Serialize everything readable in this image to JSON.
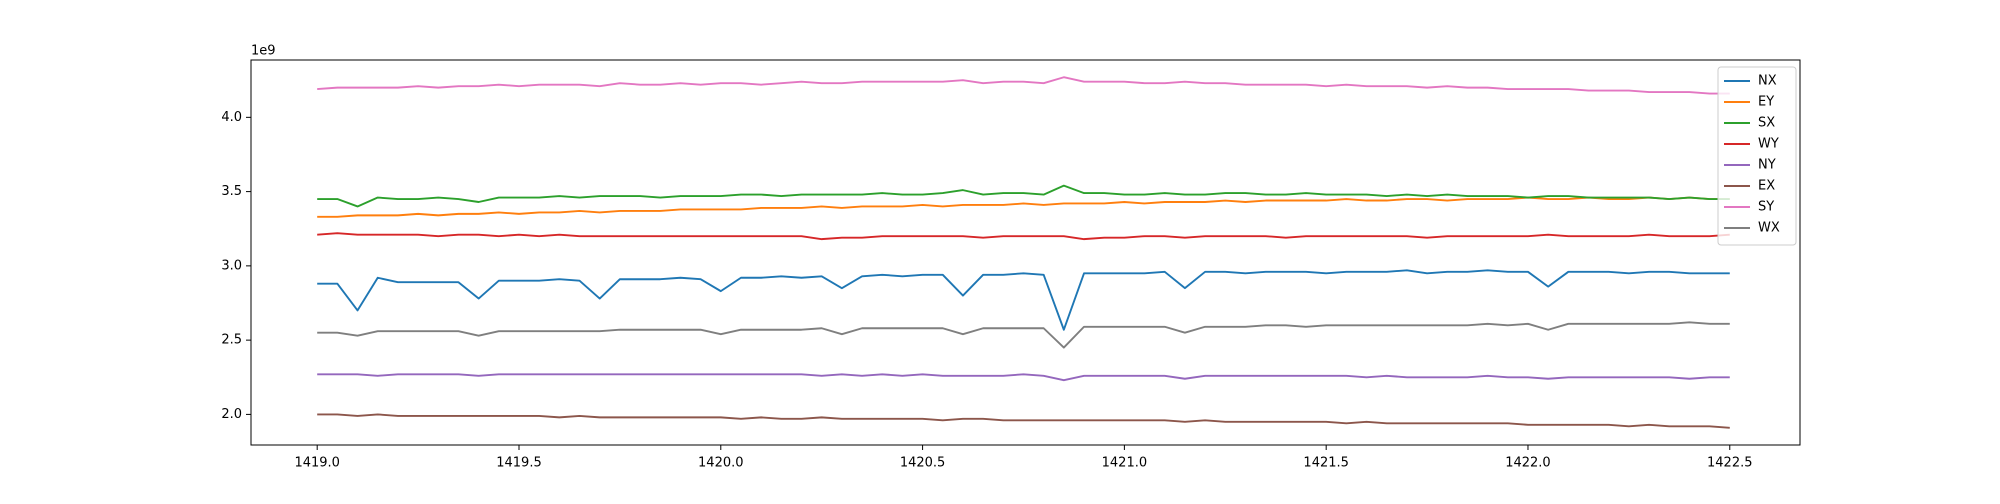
{
  "chart_data": {
    "type": "line",
    "y_offset_label": "1e9",
    "x": [
      1419,
      1419.05,
      1419.1,
      1419.15,
      1419.2,
      1419.25,
      1419.3,
      1419.35,
      1419.4,
      1419.45,
      1419.5,
      1419.55,
      1419.6,
      1419.65,
      1419.7,
      1419.75,
      1419.8,
      1419.85,
      1419.9,
      1419.95,
      1420,
      1420.05,
      1420.1,
      1420.15,
      1420.2,
      1420.25,
      1420.3,
      1420.35,
      1420.4,
      1420.45,
      1420.5,
      1420.55,
      1420.6,
      1420.65,
      1420.7,
      1420.75,
      1420.8,
      1420.85,
      1420.9,
      1420.95,
      1421,
      1421.05,
      1421.1,
      1421.15,
      1421.2,
      1421.25,
      1421.3,
      1421.35,
      1421.4,
      1421.45,
      1421.5,
      1421.55,
      1421.6,
      1421.65,
      1421.7,
      1421.75,
      1421.8,
      1421.85,
      1421.9,
      1421.95,
      1422,
      1422.05,
      1422.1,
      1422.15,
      1422.2,
      1422.25,
      1422.3,
      1422.35,
      1422.4,
      1422.45,
      1422.5
    ],
    "series": [
      {
        "name": "NX",
        "color": "#1f77b4",
        "values": [
          2.88,
          2.88,
          2.7,
          2.92,
          2.89,
          2.89,
          2.89,
          2.89,
          2.78,
          2.9,
          2.9,
          2.9,
          2.91,
          2.9,
          2.78,
          2.91,
          2.91,
          2.91,
          2.92,
          2.91,
          2.83,
          2.92,
          2.92,
          2.93,
          2.92,
          2.93,
          2.85,
          2.93,
          2.94,
          2.93,
          2.94,
          2.94,
          2.8,
          2.94,
          2.94,
          2.95,
          2.94,
          2.57,
          2.95,
          2.95,
          2.95,
          2.95,
          2.96,
          2.85,
          2.96,
          2.96,
          2.95,
          2.96,
          2.96,
          2.96,
          2.95,
          2.96,
          2.96,
          2.96,
          2.97,
          2.95,
          2.96,
          2.96,
          2.97,
          2.96,
          2.96,
          2.86,
          2.96,
          2.96,
          2.96,
          2.95,
          2.96,
          2.96,
          2.95,
          2.95,
          2.95
        ]
      },
      {
        "name": "EY",
        "color": "#ff7f0e",
        "values": [
          3.33,
          3.33,
          3.34,
          3.34,
          3.34,
          3.35,
          3.34,
          3.35,
          3.35,
          3.36,
          3.35,
          3.36,
          3.36,
          3.37,
          3.36,
          3.37,
          3.37,
          3.37,
          3.38,
          3.38,
          3.38,
          3.38,
          3.39,
          3.39,
          3.39,
          3.4,
          3.39,
          3.4,
          3.4,
          3.4,
          3.41,
          3.4,
          3.41,
          3.41,
          3.41,
          3.42,
          3.41,
          3.42,
          3.42,
          3.42,
          3.43,
          3.42,
          3.43,
          3.43,
          3.43,
          3.44,
          3.43,
          3.44,
          3.44,
          3.44,
          3.44,
          3.45,
          3.44,
          3.44,
          3.45,
          3.45,
          3.44,
          3.45,
          3.45,
          3.45,
          3.46,
          3.45,
          3.45,
          3.46,
          3.45,
          3.45,
          3.46,
          3.45,
          3.46,
          3.45,
          3.45
        ]
      },
      {
        "name": "SX",
        "color": "#2ca02c",
        "values": [
          3.45,
          3.45,
          3.4,
          3.46,
          3.45,
          3.45,
          3.46,
          3.45,
          3.43,
          3.46,
          3.46,
          3.46,
          3.47,
          3.46,
          3.47,
          3.47,
          3.47,
          3.46,
          3.47,
          3.47,
          3.47,
          3.48,
          3.48,
          3.47,
          3.48,
          3.48,
          3.48,
          3.48,
          3.49,
          3.48,
          3.48,
          3.49,
          3.51,
          3.48,
          3.49,
          3.49,
          3.48,
          3.54,
          3.49,
          3.49,
          3.48,
          3.48,
          3.49,
          3.48,
          3.48,
          3.49,
          3.49,
          3.48,
          3.48,
          3.49,
          3.48,
          3.48,
          3.48,
          3.47,
          3.48,
          3.47,
          3.48,
          3.47,
          3.47,
          3.47,
          3.46,
          3.47,
          3.47,
          3.46,
          3.46,
          3.46,
          3.46,
          3.45,
          3.46,
          3.45,
          3.45
        ]
      },
      {
        "name": "WY",
        "color": "#d62728",
        "values": [
          3.21,
          3.22,
          3.21,
          3.21,
          3.21,
          3.21,
          3.2,
          3.21,
          3.21,
          3.2,
          3.21,
          3.2,
          3.21,
          3.2,
          3.2,
          3.2,
          3.2,
          3.2,
          3.2,
          3.2,
          3.2,
          3.2,
          3.2,
          3.2,
          3.2,
          3.18,
          3.19,
          3.19,
          3.2,
          3.2,
          3.2,
          3.2,
          3.2,
          3.19,
          3.2,
          3.2,
          3.2,
          3.2,
          3.18,
          3.19,
          3.19,
          3.2,
          3.2,
          3.19,
          3.2,
          3.2,
          3.2,
          3.2,
          3.19,
          3.2,
          3.2,
          3.2,
          3.2,
          3.2,
          3.2,
          3.19,
          3.2,
          3.2,
          3.2,
          3.2,
          3.2,
          3.21,
          3.2,
          3.2,
          3.2,
          3.2,
          3.21,
          3.2,
          3.2,
          3.2,
          3.21
        ]
      },
      {
        "name": "NY",
        "color": "#9467bd",
        "values": [
          2.27,
          2.27,
          2.27,
          2.26,
          2.27,
          2.27,
          2.27,
          2.27,
          2.26,
          2.27,
          2.27,
          2.27,
          2.27,
          2.27,
          2.27,
          2.27,
          2.27,
          2.27,
          2.27,
          2.27,
          2.27,
          2.27,
          2.27,
          2.27,
          2.27,
          2.26,
          2.27,
          2.26,
          2.27,
          2.26,
          2.27,
          2.26,
          2.26,
          2.26,
          2.26,
          2.27,
          2.26,
          2.23,
          2.26,
          2.26,
          2.26,
          2.26,
          2.26,
          2.24,
          2.26,
          2.26,
          2.26,
          2.26,
          2.26,
          2.26,
          2.26,
          2.26,
          2.25,
          2.26,
          2.25,
          2.25,
          2.25,
          2.25,
          2.26,
          2.25,
          2.25,
          2.24,
          2.25,
          2.25,
          2.25,
          2.25,
          2.25,
          2.25,
          2.24,
          2.25,
          2.25
        ]
      },
      {
        "name": "EX",
        "color": "#8c564b",
        "values": [
          2.0,
          2.0,
          1.99,
          2.0,
          1.99,
          1.99,
          1.99,
          1.99,
          1.99,
          1.99,
          1.99,
          1.99,
          1.98,
          1.99,
          1.98,
          1.98,
          1.98,
          1.98,
          1.98,
          1.98,
          1.98,
          1.97,
          1.98,
          1.97,
          1.97,
          1.98,
          1.97,
          1.97,
          1.97,
          1.97,
          1.97,
          1.96,
          1.97,
          1.97,
          1.96,
          1.96,
          1.96,
          1.96,
          1.96,
          1.96,
          1.96,
          1.96,
          1.96,
          1.95,
          1.96,
          1.95,
          1.95,
          1.95,
          1.95,
          1.95,
          1.95,
          1.94,
          1.95,
          1.94,
          1.94,
          1.94,
          1.94,
          1.94,
          1.94,
          1.94,
          1.93,
          1.93,
          1.93,
          1.93,
          1.93,
          1.92,
          1.93,
          1.92,
          1.92,
          1.92,
          1.91
        ]
      },
      {
        "name": "SY",
        "color": "#e377c2",
        "values": [
          4.19,
          4.2,
          4.2,
          4.2,
          4.2,
          4.21,
          4.2,
          4.21,
          4.21,
          4.22,
          4.21,
          4.22,
          4.22,
          4.22,
          4.21,
          4.23,
          4.22,
          4.22,
          4.23,
          4.22,
          4.23,
          4.23,
          4.22,
          4.23,
          4.24,
          4.23,
          4.23,
          4.24,
          4.24,
          4.24,
          4.24,
          4.24,
          4.25,
          4.23,
          4.24,
          4.24,
          4.23,
          4.27,
          4.24,
          4.24,
          4.24,
          4.23,
          4.23,
          4.24,
          4.23,
          4.23,
          4.22,
          4.22,
          4.22,
          4.22,
          4.21,
          4.22,
          4.21,
          4.21,
          4.21,
          4.2,
          4.21,
          4.2,
          4.2,
          4.19,
          4.19,
          4.19,
          4.19,
          4.18,
          4.18,
          4.18,
          4.17,
          4.17,
          4.17,
          4.16,
          4.16
        ]
      },
      {
        "name": "WX",
        "color": "#7f7f7f",
        "values": [
          2.55,
          2.55,
          2.53,
          2.56,
          2.56,
          2.56,
          2.56,
          2.56,
          2.53,
          2.56,
          2.56,
          2.56,
          2.56,
          2.56,
          2.56,
          2.57,
          2.57,
          2.57,
          2.57,
          2.57,
          2.54,
          2.57,
          2.57,
          2.57,
          2.57,
          2.58,
          2.54,
          2.58,
          2.58,
          2.58,
          2.58,
          2.58,
          2.54,
          2.58,
          2.58,
          2.58,
          2.58,
          2.45,
          2.59,
          2.59,
          2.59,
          2.59,
          2.59,
          2.55,
          2.59,
          2.59,
          2.59,
          2.6,
          2.6,
          2.59,
          2.6,
          2.6,
          2.6,
          2.6,
          2.6,
          2.6,
          2.6,
          2.6,
          2.61,
          2.6,
          2.61,
          2.57,
          2.61,
          2.61,
          2.61,
          2.61,
          2.61,
          2.61,
          2.62,
          2.61,
          2.61
        ]
      }
    ],
    "xlim": [
      1418.836,
      1422.674
    ],
    "ylim": [
      1.794,
      4.386
    ],
    "xticks": [
      {
        "value": 1419,
        "label": "1419.0"
      },
      1419.5,
      {
        "value": 1420,
        "label": "1420.0"
      },
      1420.5,
      {
        "value": 1421,
        "label": "1421.0"
      },
      1421.5,
      {
        "value": 1422,
        "label": "1422.0"
      },
      1422.5
    ],
    "yticks": [
      {
        "value": 2,
        "label": "2.0"
      },
      2.5,
      {
        "value": 3,
        "label": "3.0"
      },
      3.5,
      {
        "value": 4,
        "label": "4.0"
      }
    ],
    "grid": false,
    "legend": "upper right"
  }
}
